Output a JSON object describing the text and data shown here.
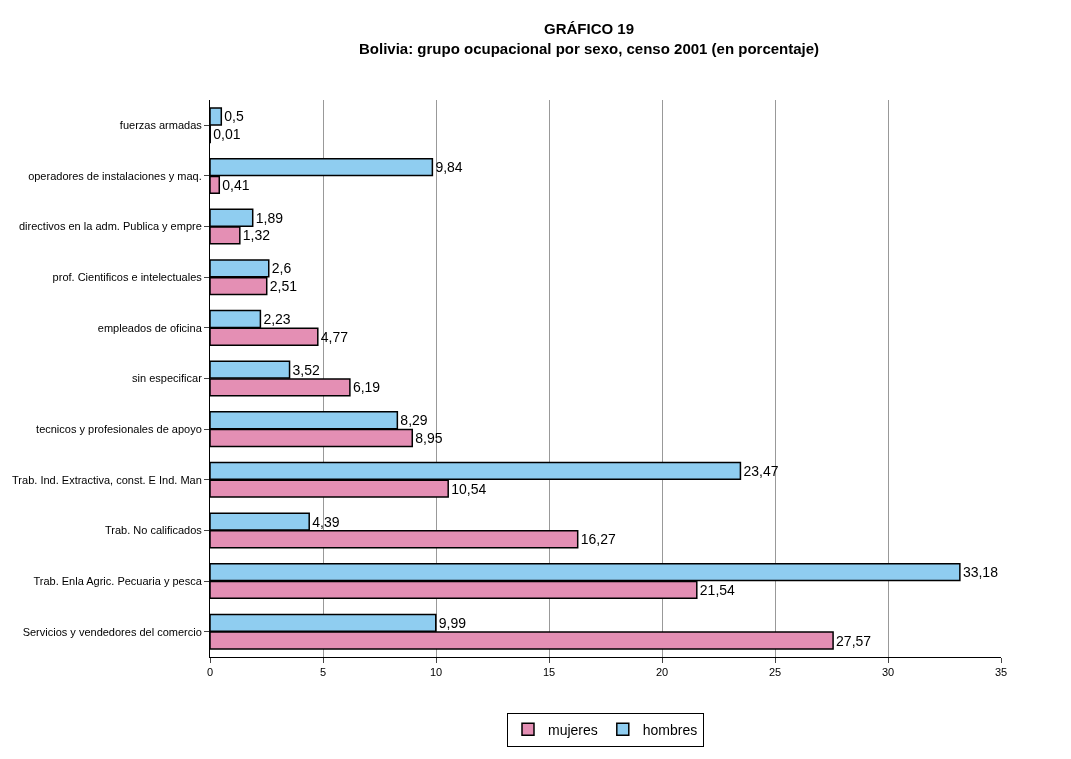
{
  "chart_data": {
    "type": "bar",
    "orientation": "horizontal",
    "title": "GRÁFICO 19",
    "subtitle": "Bolivia: grupo ocupacional por sexo, censo 2001 (en porcentaje)",
    "categories": [
      "fuerzas armadas",
      "operadores de instalaciones y maq.",
      "directivos en la adm. Publica y empre",
      "prof. Cientificos e intelectuales",
      "empleados de oficina",
      "sin especificar",
      "tecnicos y profesionales de apoyo",
      "Trab. Ind. Extractiva, const. E Ind. Man",
      "Trab. No calificados",
      "Trab. Enla Agric. Pecuaria y pesca",
      "Servicios y vendedores del comercio"
    ],
    "series": [
      {
        "name": "mujeres",
        "color": "#e48fb4",
        "values": [
          0.01,
          0.41,
          1.32,
          2.51,
          4.77,
          6.19,
          8.95,
          10.54,
          16.27,
          21.54,
          27.57
        ],
        "value_labels": [
          "0,01",
          "0,41",
          "1,32",
          "2,51",
          "4,77",
          "6,19",
          "8,95",
          "10,54",
          "16,27",
          "21,54",
          "27,57"
        ]
      },
      {
        "name": "hombres",
        "color": "#8fcdf0",
        "values": [
          0.5,
          9.84,
          1.89,
          2.6,
          2.23,
          3.52,
          8.29,
          23.47,
          4.39,
          33.18,
          9.99
        ],
        "value_labels": [
          "0,5",
          "9,84",
          "1,89",
          "2,6",
          "2,23",
          "3,52",
          "8,29",
          "23,47",
          "4,39",
          "33,18",
          "9,99"
        ]
      }
    ],
    "xlim": [
      0,
      35
    ],
    "xticks": [
      0,
      5,
      10,
      15,
      20,
      25,
      30,
      35
    ],
    "grid": "x",
    "legend": "bottom"
  }
}
